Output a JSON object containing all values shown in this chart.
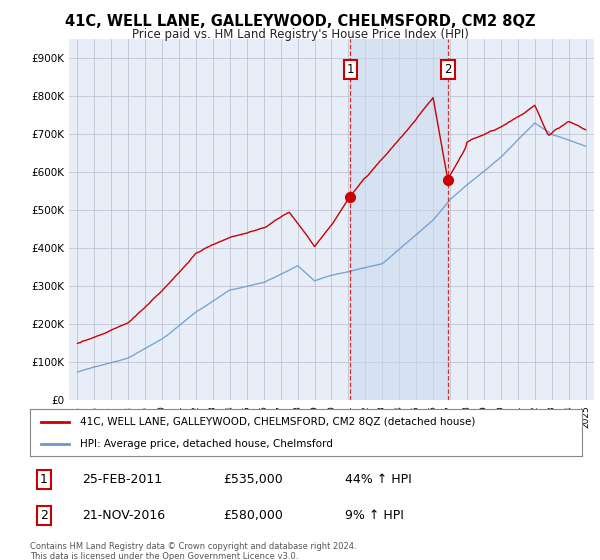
{
  "title": "41C, WELL LANE, GALLEYWOOD, CHELMSFORD, CM2 8QZ",
  "subtitle": "Price paid vs. HM Land Registry's House Price Index (HPI)",
  "hpi_label": "HPI: Average price, detached house, Chelmsford",
  "property_label": "41C, WELL LANE, GALLEYWOOD, CHELMSFORD, CM2 8QZ (detached house)",
  "footer": "Contains HM Land Registry data © Crown copyright and database right 2024.\nThis data is licensed under the Open Government Licence v3.0.",
  "sale1": {
    "date": "25-FEB-2011",
    "price": 535000,
    "hpi_pct": "44% ↑ HPI",
    "label": "1"
  },
  "sale2": {
    "date": "21-NOV-2016",
    "price": 580000,
    "hpi_pct": "9% ↑ HPI",
    "label": "2"
  },
  "sale1_x": 2011.12,
  "sale2_x": 2016.88,
  "sale1_y": 535000,
  "sale2_y": 580000,
  "ylim": [
    0,
    950000
  ],
  "xlim": [
    1994.5,
    2025.5
  ],
  "background_color": "#ffffff",
  "plot_bg": "#e8eef8",
  "red_line_color": "#cc0000",
  "blue_line_color": "#6699cc",
  "shade_color": "#c8d8ee",
  "grid_color": "#bbbbcc",
  "yticks": [
    0,
    100000,
    200000,
    300000,
    400000,
    500000,
    600000,
    700000,
    800000,
    900000
  ]
}
